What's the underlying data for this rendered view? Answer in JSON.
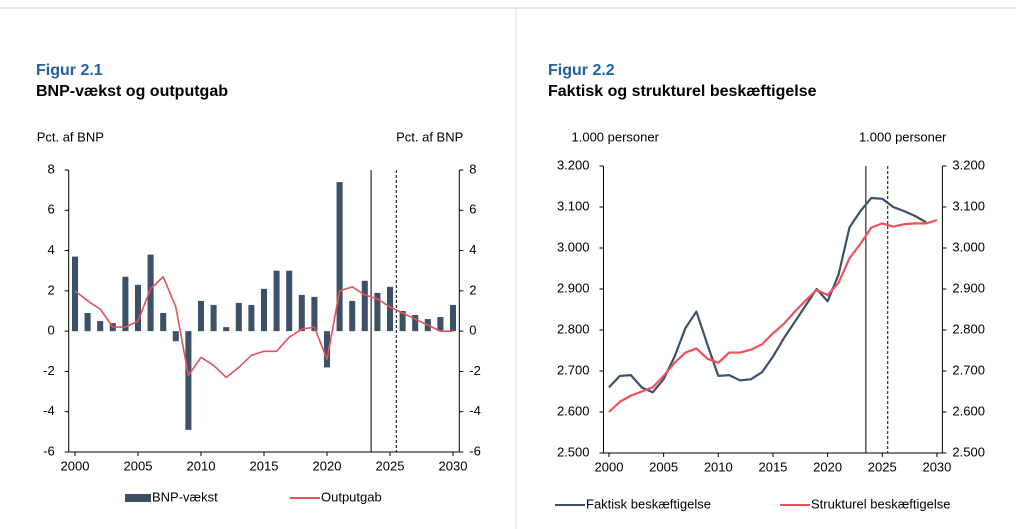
{
  "chart_data": [
    {
      "type": "bar",
      "figure_label": "Figur 2.1",
      "title": "BNP-vækst og outputgab",
      "y_label": "Pct. af BNP",
      "y2_label": "Pct. af BNP",
      "x": [
        2000,
        2001,
        2002,
        2003,
        2004,
        2005,
        2006,
        2007,
        2008,
        2009,
        2010,
        2011,
        2012,
        2013,
        2014,
        2015,
        2016,
        2017,
        2018,
        2019,
        2020,
        2021,
        2022,
        2023,
        2024,
        2025,
        2026,
        2027,
        2028,
        2029,
        2030
      ],
      "xlim": [
        1999.5,
        2030.5
      ],
      "xticks": [
        2000,
        2005,
        2010,
        2015,
        2020,
        2025,
        2030
      ],
      "ylim": [
        -6,
        8
      ],
      "yticks": [
        -6,
        -4,
        -2,
        0,
        2,
        4,
        6,
        8
      ],
      "y2lim": [
        -6,
        8
      ],
      "y2ticks": [
        -6,
        -4,
        -2,
        0,
        2,
        4,
        6,
        8
      ],
      "grid": false,
      "legend": "bottom",
      "vlines": [
        {
          "x": 2023.5,
          "style": "solid"
        },
        {
          "x": 2025.5,
          "style": "dashed"
        }
      ],
      "series": [
        {
          "name": "BNP-vækst",
          "type": "bar",
          "color": "#3d5166",
          "values": [
            3.7,
            0.9,
            0.5,
            0.4,
            2.7,
            2.3,
            3.8,
            0.9,
            -0.5,
            -4.9,
            1.5,
            1.3,
            0.2,
            1.4,
            1.3,
            2.1,
            3.0,
            3.0,
            1.8,
            1.7,
            -1.8,
            7.4,
            1.5,
            2.5,
            1.9,
            2.2,
            1.0,
            0.8,
            0.6,
            0.7,
            1.3
          ]
        },
        {
          "name": "Outputgab",
          "type": "line",
          "axis": "y2",
          "color": "#e8505b",
          "values": [
            2.0,
            1.5,
            1.1,
            0.2,
            0.2,
            0.5,
            2.1,
            2.7,
            1.2,
            -2.2,
            -1.3,
            -1.7,
            -2.3,
            -1.8,
            -1.2,
            -1.0,
            -1.0,
            -0.3,
            0.1,
            0.2,
            -1.4,
            2.0,
            2.2,
            1.8,
            1.6,
            1.2,
            0.9,
            0.6,
            0.3,
            0.0,
            0.0
          ]
        }
      ]
    },
    {
      "type": "line",
      "figure_label": "Figur 2.2",
      "title": "Faktisk og strukturel beskæftigelse",
      "y_label": "1.000 personer",
      "y2_label": "1.000 personer",
      "x": [
        2000,
        2001,
        2002,
        2003,
        2004,
        2005,
        2006,
        2007,
        2008,
        2009,
        2010,
        2011,
        2012,
        2013,
        2014,
        2015,
        2016,
        2017,
        2018,
        2019,
        2020,
        2021,
        2022,
        2023,
        2024,
        2025,
        2026,
        2027,
        2028,
        2029,
        2030
      ],
      "xlim": [
        1999.5,
        2030.5
      ],
      "xticks": [
        2000,
        2005,
        2010,
        2015,
        2020,
        2025,
        2030
      ],
      "ylim": [
        2500,
        3200
      ],
      "yticks": [
        {
          "value": 2500,
          "label": "2.500"
        },
        {
          "value": 2600,
          "label": "2.600"
        },
        {
          "value": 2700,
          "label": "2.700"
        },
        {
          "value": 2800,
          "label": "2.800"
        },
        {
          "value": 2900,
          "label": "2.900"
        },
        {
          "value": 3000,
          "label": "3.000"
        },
        {
          "value": 3100,
          "label": "3.100"
        },
        {
          "value": 3200,
          "label": "3.200"
        }
      ],
      "y2lim": [
        2500,
        3200
      ],
      "y2ticks": [
        {
          "value": 2500,
          "label": "2.500"
        },
        {
          "value": 2600,
          "label": "2.600"
        },
        {
          "value": 2700,
          "label": "2.700"
        },
        {
          "value": 2800,
          "label": "2.800"
        },
        {
          "value": 2900,
          "label": "2.900"
        },
        {
          "value": 3000,
          "label": "3.000"
        },
        {
          "value": 3100,
          "label": "3.100"
        },
        {
          "value": 3200,
          "label": "3.200"
        }
      ],
      "grid": false,
      "legend": "bottom",
      "vlines": [
        {
          "x": 2023.5,
          "style": "solid"
        },
        {
          "x": 2025.5,
          "style": "dashed"
        }
      ],
      "series": [
        {
          "name": "Faktisk beskæftigelse",
          "type": "line",
          "color": "#3d5166",
          "values": [
            2660,
            2688,
            2690,
            2660,
            2648,
            2680,
            2735,
            2805,
            2845,
            2765,
            2688,
            2690,
            2677,
            2680,
            2697,
            2735,
            2780,
            2820,
            2860,
            2900,
            2870,
            2935,
            3050,
            3090,
            3122,
            3120,
            3100,
            3090,
            3078,
            3063,
            null
          ]
        },
        {
          "name": "Strukturel beskæftigelse",
          "type": "line",
          "color": "#f0505a",
          "values": [
            2600,
            2625,
            2640,
            2650,
            2660,
            2688,
            2720,
            2745,
            2755,
            2730,
            2720,
            2745,
            2745,
            2752,
            2765,
            2792,
            2815,
            2845,
            2872,
            2898,
            2885,
            2915,
            2975,
            3010,
            3050,
            3060,
            3052,
            3058,
            3060,
            3060,
            3068
          ]
        }
      ]
    }
  ]
}
